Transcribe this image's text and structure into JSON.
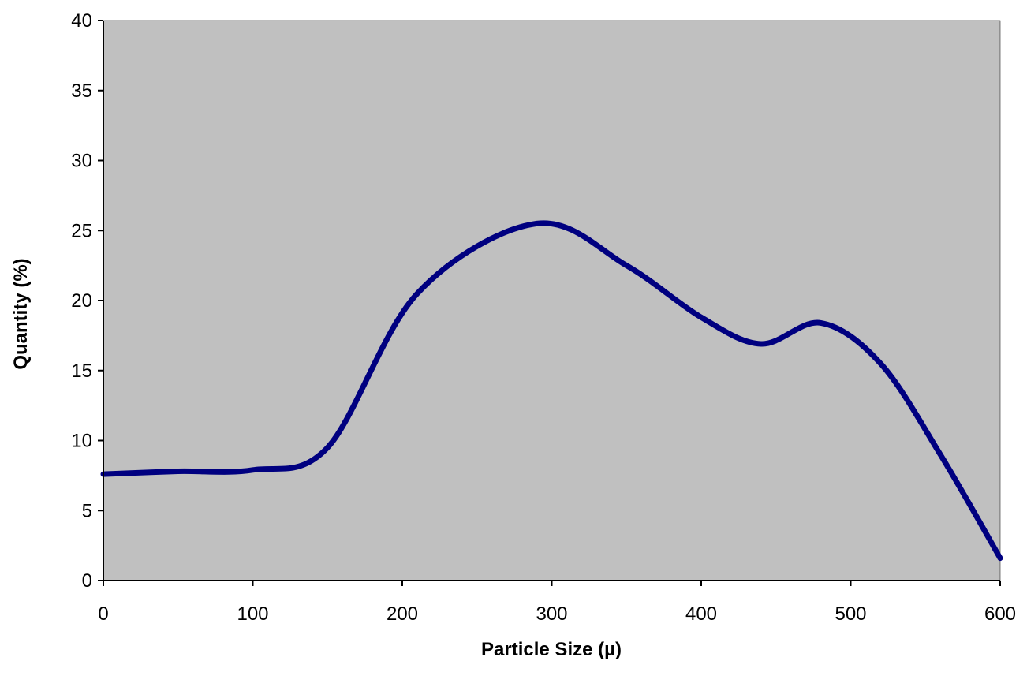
{
  "chart_data": {
    "type": "line",
    "title": "",
    "xlabel": "Particle Size (µ)",
    "ylabel": "Quantity (%)",
    "xlim": [
      0,
      600
    ],
    "ylim": [
      0,
      40
    ],
    "x_ticks": [
      0,
      100,
      200,
      300,
      400,
      500,
      600
    ],
    "y_ticks": [
      0,
      5,
      10,
      15,
      20,
      25,
      30,
      35,
      40
    ],
    "x_tick_labels": [
      "0",
      "100",
      "200",
      "300",
      "400",
      "500",
      "600"
    ],
    "y_tick_labels": [
      "0",
      "5",
      "10",
      "15",
      "20",
      "25",
      "30",
      "35",
      "40"
    ],
    "grid": false,
    "legend": "none",
    "plot_background": "#c0c0c0",
    "series": [
      {
        "color": "#000080",
        "smooth": true,
        "x": [
          0,
          50,
          100,
          150,
          210,
          290,
          350,
          400,
          440,
          480,
          520,
          560,
          600
        ],
        "y": [
          7.6,
          7.8,
          7.9,
          9.5,
          20.5,
          25.5,
          22.5,
          18.8,
          16.9,
          18.4,
          15.5,
          9.0,
          1.6
        ]
      }
    ]
  }
}
